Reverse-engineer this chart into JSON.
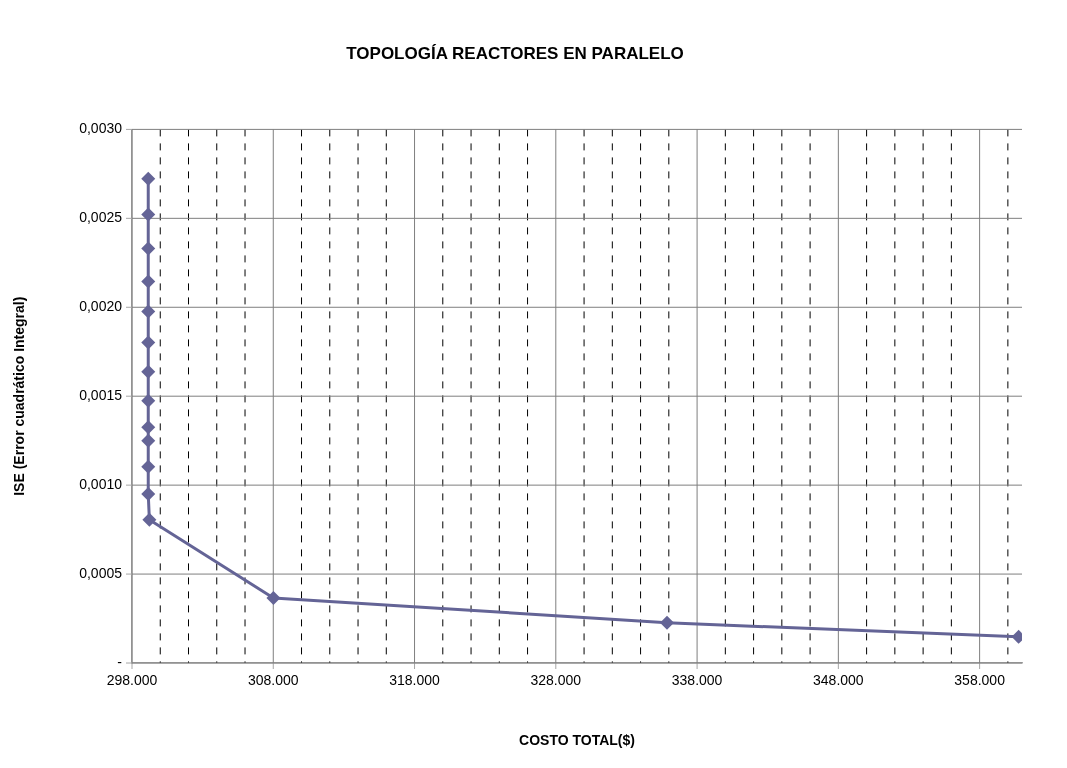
{
  "chart_data": {
    "type": "line",
    "title": "TOPOLOGÍA REACTORES EN PARALELO",
    "xlabel": "COSTO TOTAL($)",
    "ylabel": "ISE (Error cuadrático Integral)",
    "x": [
      299150,
      299150,
      299150,
      299150,
      299150,
      299150,
      299150,
      299150,
      299150,
      299150,
      299150,
      299150,
      299230,
      308010,
      335870,
      360760
    ],
    "series": [
      {
        "color": "#646496",
        "values": [
          0.002723,
          0.002522,
          0.00233,
          0.002145,
          0.001976,
          0.001802,
          0.001637,
          0.001475,
          0.001325,
          0.001249,
          0.001104,
          0.00095,
          0.000805,
          0.000366,
          0.000226,
          0.000147
        ]
      }
    ],
    "marker": "diamond",
    "line_style": "solid",
    "grid": true,
    "legend": false,
    "xlim": [
      298000,
      361000
    ],
    "xticks": [
      {
        "value": 298000,
        "label": "298.000"
      },
      {
        "value": 300000,
        "label": null
      },
      {
        "value": 302000,
        "label": null
      },
      {
        "value": 304000,
        "label": null
      },
      {
        "value": 306000,
        "label": null
      },
      {
        "value": 308000,
        "label": "308.000"
      },
      {
        "value": 310000,
        "label": null
      },
      {
        "value": 312000,
        "label": null
      },
      {
        "value": 314000,
        "label": null
      },
      {
        "value": 316000,
        "label": null
      },
      {
        "value": 318000,
        "label": "318.000"
      },
      {
        "value": 320000,
        "label": null
      },
      {
        "value": 322000,
        "label": null
      },
      {
        "value": 324000,
        "label": null
      },
      {
        "value": 326000,
        "label": null
      },
      {
        "value": 328000,
        "label": "328.000"
      },
      {
        "value": 330000,
        "label": null
      },
      {
        "value": 332000,
        "label": null
      },
      {
        "value": 334000,
        "label": null
      },
      {
        "value": 336000,
        "label": null
      },
      {
        "value": 338000,
        "label": "338.000"
      },
      {
        "value": 340000,
        "label": null
      },
      {
        "value": 342000,
        "label": null
      },
      {
        "value": 344000,
        "label": null
      },
      {
        "value": 346000,
        "label": null
      },
      {
        "value": 348000,
        "label": "348.000"
      },
      {
        "value": 350000,
        "label": null
      },
      {
        "value": 352000,
        "label": null
      },
      {
        "value": 354000,
        "label": null
      },
      {
        "value": 356000,
        "label": null
      },
      {
        "value": 358000,
        "label": "358.000"
      },
      {
        "value": 360000,
        "label": null
      }
    ],
    "ylim": [
      0,
      0.003
    ],
    "yticks": [
      {
        "value": 0,
        "label": "-"
      },
      {
        "value": 0.0005,
        "label": "0,0005"
      },
      {
        "value": 0.001,
        "label": "0,0010"
      },
      {
        "value": 0.0015,
        "label": "0,0015"
      },
      {
        "value": 0.002,
        "label": "0,0020"
      },
      {
        "value": 0.0025,
        "label": "0,0025"
      },
      {
        "value": 0.003,
        "label": "0,0030"
      }
    ]
  }
}
